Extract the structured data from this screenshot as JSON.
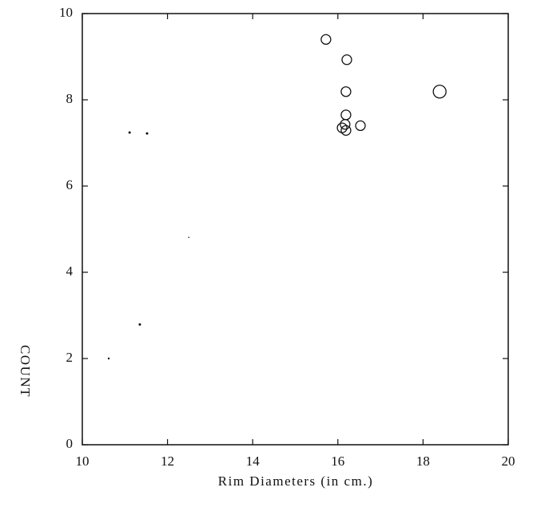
{
  "chart_data": {
    "type": "scatter",
    "x_label": "Rim Diameters (in cm.)",
    "y_label": "COUNT",
    "x": [
      15.72,
      16.21,
      16.19,
      18.39,
      16.19,
      16.17,
      16.1,
      16.19,
      16.53,
      11.11,
      11.52,
      12.5,
      11.35,
      10.62
    ],
    "y": [
      9.4,
      8.93,
      8.19,
      8.19,
      7.65,
      7.43,
      7.35,
      7.29,
      7.4,
      7.24,
      7.22,
      4.81,
      2.79,
      2.0
    ],
    "sizes": [
      6,
      6,
      6,
      8,
      6,
      6,
      6,
      6,
      6,
      1.5,
      1.5,
      0.8,
      1.5,
      1.2
    ],
    "color": "#111111",
    "xlim": [
      10,
      20
    ],
    "xticks": [
      10,
      12,
      14,
      16,
      18,
      20
    ],
    "ylim": [
      0,
      10
    ],
    "yticks": [
      0,
      2,
      4,
      6,
      8,
      10
    ]
  }
}
